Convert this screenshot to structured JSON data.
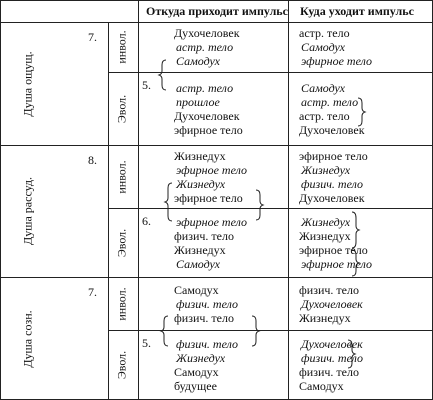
{
  "header": {
    "from": "Откуда приходит импульс",
    "to": "Куда уходит импульс"
  },
  "sections": [
    {
      "label": "Душа ощущ.",
      "number": "7.",
      "rows": [
        {
          "label": "инвол.",
          "from": [
            {
              "text": "Духочеловек",
              "italic": false
            },
            {
              "text": "астр. тело",
              "italic": true
            },
            {
              "text": "Самодух",
              "italic": true
            }
          ],
          "to": [
            {
              "text": "астр. тело",
              "italic": false
            },
            {
              "text": "Самодух",
              "italic": true
            },
            {
              "text": "эфирное тело",
              "italic": true
            }
          ]
        },
        {
          "label": "Эвол.",
          "number": "5.",
          "from": [
            {
              "text": "астр. тело",
              "italic": true
            },
            {
              "text": "прошлое",
              "italic": true
            },
            {
              "text": "Духочеловек",
              "italic": false
            },
            {
              "text": "эфирное тело",
              "italic": false
            }
          ],
          "to": [
            {
              "text": "Самодух",
              "italic": true
            },
            {
              "text": "астр. тело",
              "italic": true
            },
            {
              "text": "астр. тело",
              "italic": false
            },
            {
              "text": "Духочеловек",
              "italic": false
            }
          ]
        }
      ]
    },
    {
      "label": "Душа рассуд.",
      "number": "8.",
      "rows": [
        {
          "label": "инвол.",
          "from": [
            {
              "text": "Жизнедух",
              "italic": false
            },
            {
              "text": "эфирное тело",
              "italic": true
            },
            {
              "text": "Жизнедух",
              "italic": true
            },
            {
              "text": "эфирное тело",
              "italic": false
            }
          ],
          "to": [
            {
              "text": "эфирное тело",
              "italic": false
            },
            {
              "text": "Жизнедух",
              "italic": true
            },
            {
              "text": "физич. тело",
              "italic": true
            },
            {
              "text": "Духочеловек",
              "italic": false
            }
          ]
        },
        {
          "label": "Эвол.",
          "number": "6.",
          "from": [
            {
              "text": "эфирное тело",
              "italic": true
            },
            {
              "text": "физич. тело",
              "italic": false
            },
            {
              "text": "Жизнедух",
              "italic": false
            },
            {
              "text": "Самодух",
              "italic": true
            }
          ],
          "to": [
            {
              "text": "Жизнедух",
              "italic": true
            },
            {
              "text": "Жизнедух",
              "italic": false
            },
            {
              "text": "эфирное тело",
              "italic": false
            },
            {
              "text": "эфирное тело",
              "italic": true
            }
          ]
        }
      ]
    },
    {
      "label": "Душа созн.",
      "number": "7.",
      "rows": [
        {
          "label": "инвол.",
          "from": [
            {
              "text": "Самодух",
              "italic": false
            },
            {
              "text": "физич. тело",
              "italic": true
            },
            {
              "text": "физич. тело",
              "italic": false
            }
          ],
          "to": [
            {
              "text": "физич. тело",
              "italic": false
            },
            {
              "text": "Духочеловек",
              "italic": true
            },
            {
              "text": "Жизнедух",
              "italic": false
            }
          ]
        },
        {
          "label": "Эвол.",
          "number": "5.",
          "from": [
            {
              "text": "физич. тело",
              "italic": true
            },
            {
              "text": "Жизнедух",
              "italic": true
            },
            {
              "text": "Самодух",
              "italic": false
            },
            {
              "text": "будущее",
              "italic": false
            }
          ],
          "to": [
            {
              "text": "Духочеловек",
              "italic": true
            },
            {
              "text": "физич. тело",
              "italic": true
            },
            {
              "text": "физич. тело",
              "italic": false
            },
            {
              "text": "Самодух",
              "italic": false
            }
          ]
        }
      ]
    }
  ]
}
